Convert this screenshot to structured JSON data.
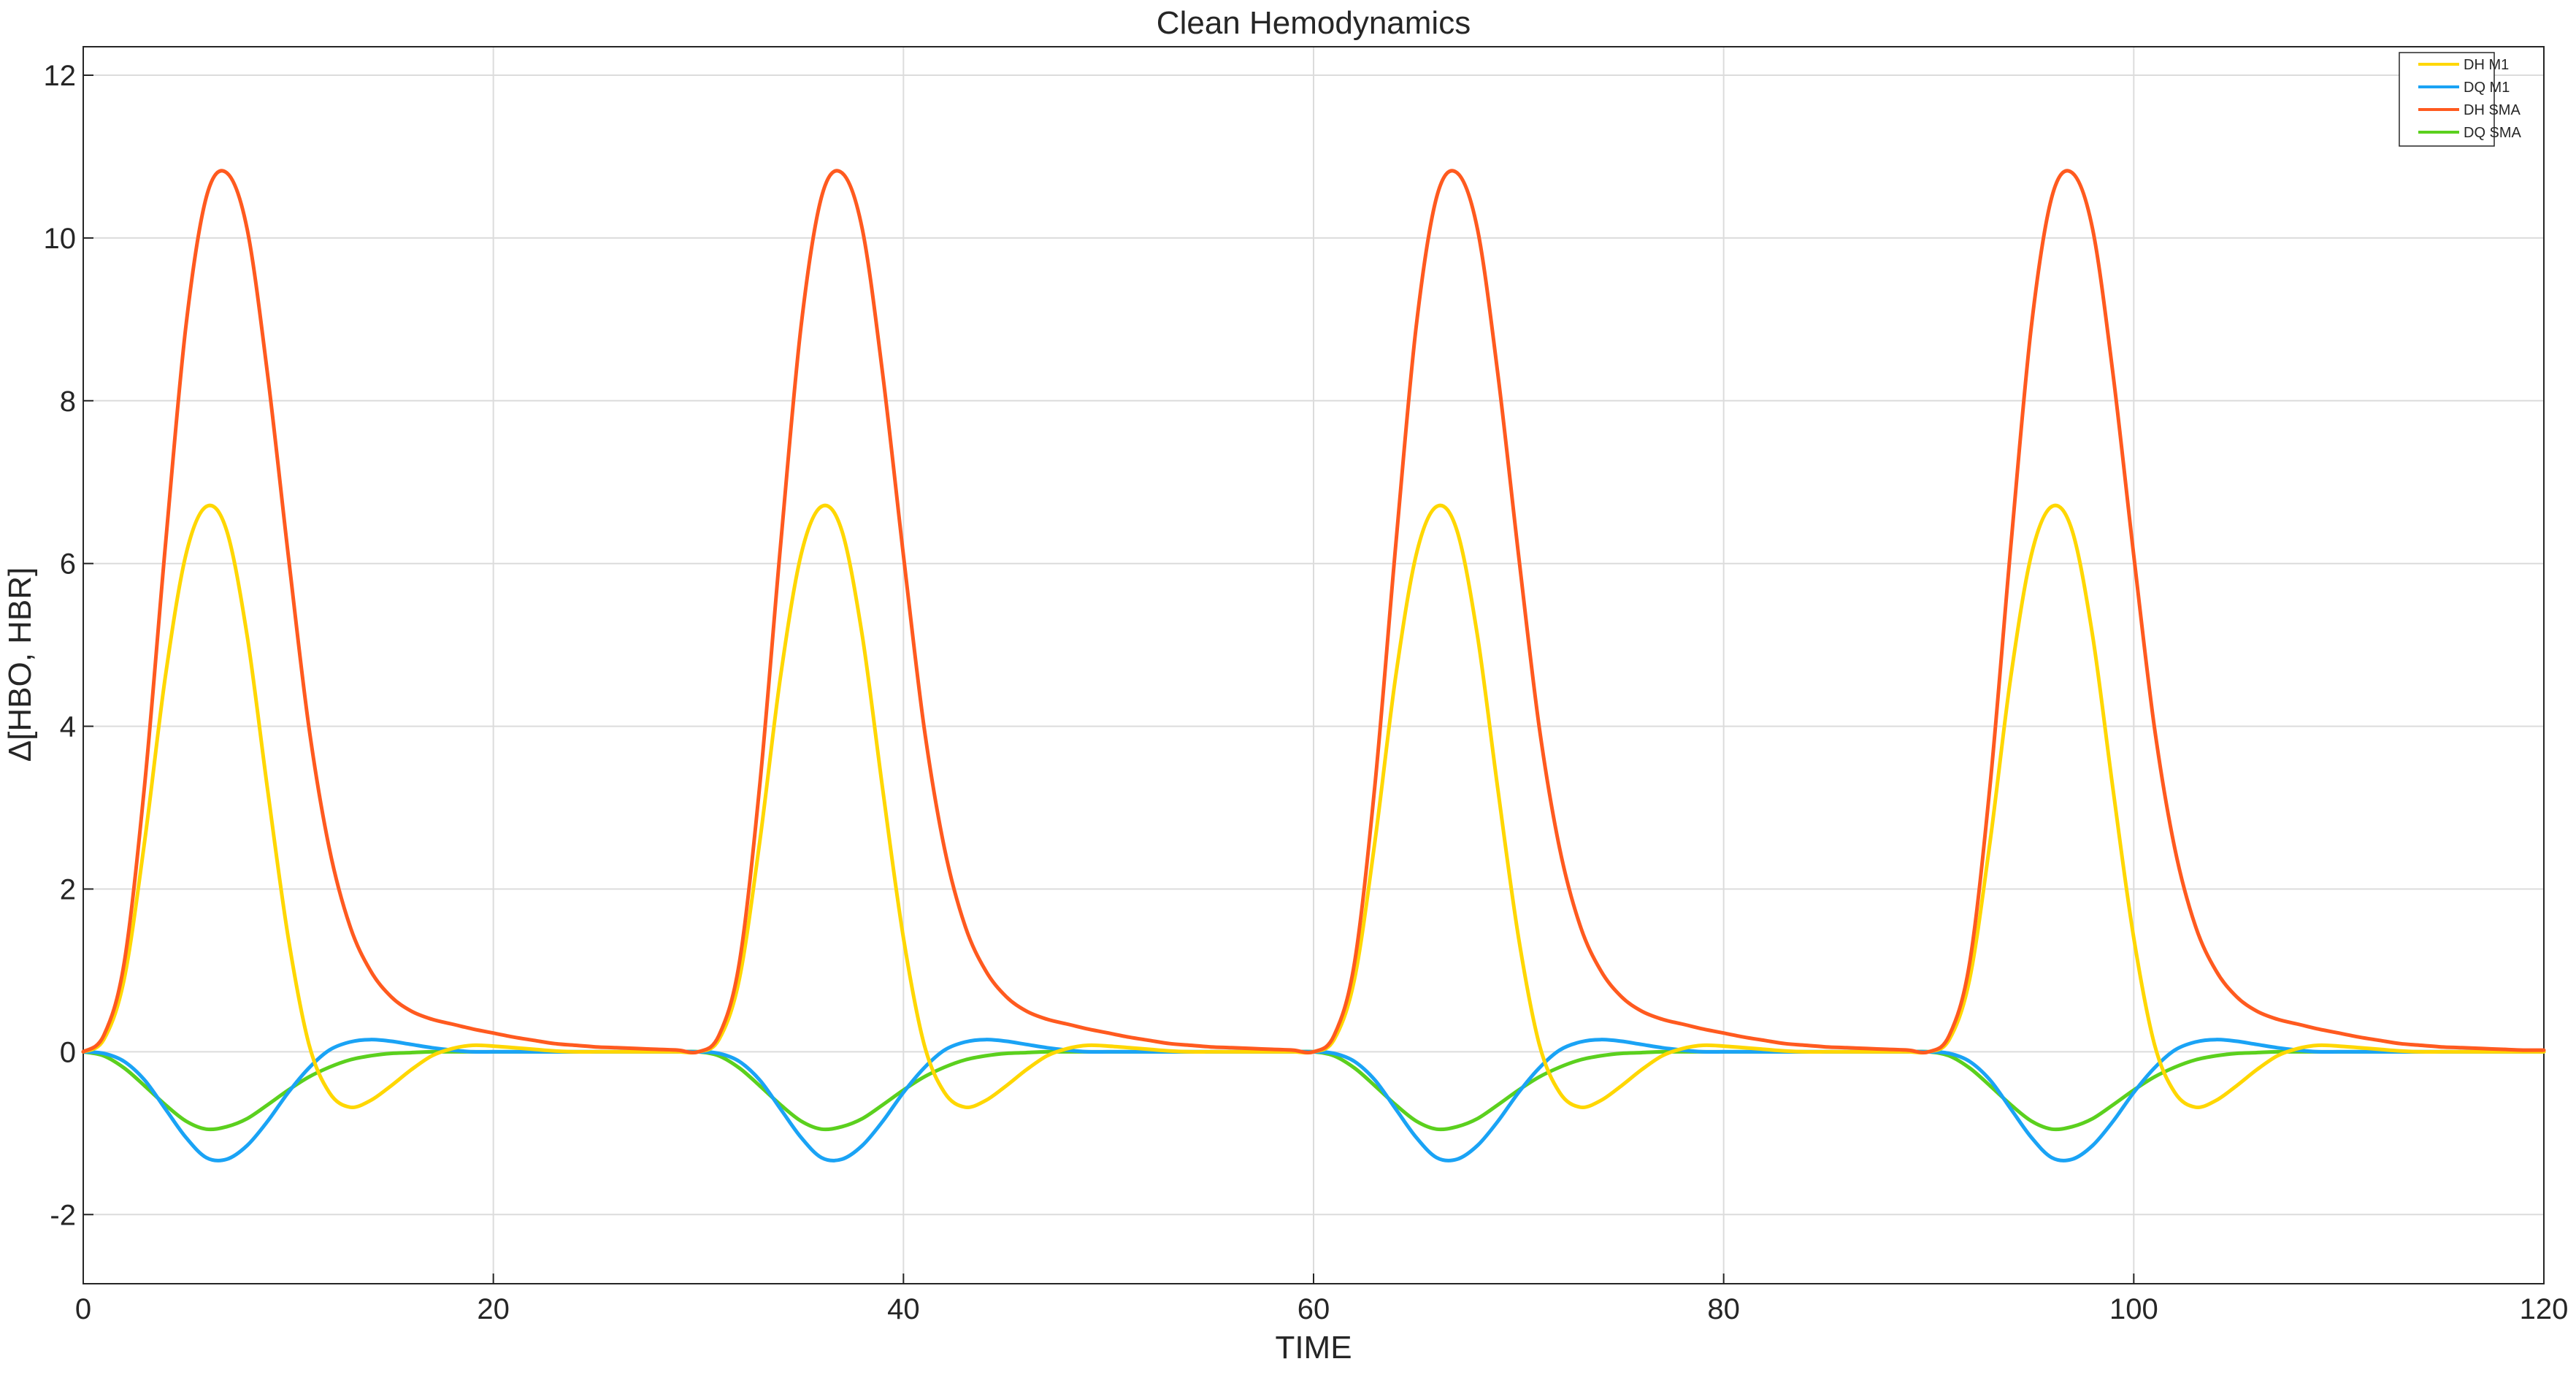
{
  "chart_data": {
    "type": "line",
    "title": "Clean Hemodynamics",
    "xlabel": "TIME",
    "ylabel": "Δ[HBO, HBR]",
    "xlim": [
      0,
      120
    ],
    "ylim": [
      -2.85,
      12.35
    ],
    "xticks": [
      0,
      20,
      40,
      60,
      80,
      100,
      120
    ],
    "yticks": [
      -2,
      0,
      2,
      4,
      6,
      8,
      10,
      12
    ],
    "xtick_labels": [
      "0",
      "20",
      "40",
      "60",
      "80",
      "100",
      "120"
    ],
    "ytick_labels": [
      "-2",
      "0",
      "2",
      "4",
      "6",
      "8",
      "10",
      "12"
    ],
    "grid": true,
    "legend_position": "top-right",
    "period": 30,
    "x": [
      0,
      1,
      2,
      3,
      4,
      5,
      6,
      7,
      8,
      9,
      10,
      11,
      12,
      13,
      14,
      15,
      16,
      17,
      18,
      19,
      20,
      21,
      22,
      23,
      24,
      25,
      26,
      27,
      28,
      29,
      30,
      31,
      32,
      33,
      34,
      35,
      36,
      37,
      38,
      39,
      40,
      41,
      42,
      43,
      44,
      45,
      46,
      47,
      48,
      49,
      50,
      51,
      52,
      53,
      54,
      55,
      56,
      57,
      58,
      59,
      60,
      61,
      62,
      63,
      64,
      65,
      66,
      67,
      68,
      69,
      70,
      71,
      72,
      73,
      74,
      75,
      76,
      77,
      78,
      79,
      80,
      81,
      82,
      83,
      84,
      85,
      86,
      87,
      88,
      89,
      90,
      91,
      92,
      93,
      94,
      95,
      96,
      97,
      98,
      99,
      100,
      101,
      102,
      103,
      104,
      105,
      106,
      107,
      108,
      109,
      110,
      111,
      112,
      113,
      114,
      115,
      116,
      117,
      118,
      119,
      120
    ],
    "series": [
      {
        "name": "DH M1",
        "color": "#FFD700",
        "values": [
          0,
          0.15,
          0.9,
          2.6,
          4.6,
          6.1,
          6.7,
          6.4,
          5.1,
          3.2,
          1.4,
          0.1,
          -0.5,
          -0.68,
          -0.6,
          -0.42,
          -0.22,
          -0.05,
          0.04,
          0.08,
          0.07,
          0.05,
          0.03,
          0.01,
          0,
          0,
          0,
          0,
          0,
          0,
          0,
          0.15,
          0.9,
          2.6,
          4.6,
          6.1,
          6.7,
          6.4,
          5.1,
          3.2,
          1.4,
          0.1,
          -0.5,
          -0.68,
          -0.6,
          -0.42,
          -0.22,
          -0.05,
          0.04,
          0.08,
          0.07,
          0.05,
          0.03,
          0.01,
          0,
          0,
          0,
          0,
          0,
          0,
          0,
          0.15,
          0.9,
          2.6,
          4.6,
          6.1,
          6.7,
          6.4,
          5.1,
          3.2,
          1.4,
          0.1,
          -0.5,
          -0.68,
          -0.6,
          -0.42,
          -0.22,
          -0.05,
          0.04,
          0.08,
          0.07,
          0.05,
          0.03,
          0.01,
          0,
          0,
          0,
          0,
          0,
          0,
          0,
          0.15,
          0.9,
          2.6,
          4.6,
          6.1,
          6.7,
          6.4,
          5.1,
          3.2,
          1.4,
          0.1,
          -0.5,
          -0.68,
          -0.6,
          -0.42,
          -0.22,
          -0.05,
          0.04,
          0.08,
          0.07,
          0.05,
          0.03,
          0.01,
          0,
          0,
          0,
          0,
          0,
          0,
          0
        ]
      },
      {
        "name": "DQ M1",
        "color": "#1AA3F5",
        "values": [
          0,
          -0.02,
          -0.12,
          -0.35,
          -0.7,
          -1.05,
          -1.3,
          -1.32,
          -1.15,
          -0.85,
          -0.5,
          -0.2,
          0.02,
          0.12,
          0.15,
          0.13,
          0.09,
          0.05,
          0.02,
          0,
          0,
          0,
          0,
          0,
          0,
          0,
          0,
          0,
          0,
          0,
          0,
          -0.02,
          -0.12,
          -0.35,
          -0.7,
          -1.05,
          -1.3,
          -1.32,
          -1.15,
          -0.85,
          -0.5,
          -0.2,
          0.02,
          0.12,
          0.15,
          0.13,
          0.09,
          0.05,
          0.02,
          0,
          0,
          0,
          0,
          0,
          0,
          0,
          0,
          0,
          0,
          0,
          0,
          -0.02,
          -0.12,
          -0.35,
          -0.7,
          -1.05,
          -1.3,
          -1.32,
          -1.15,
          -0.85,
          -0.5,
          -0.2,
          0.02,
          0.12,
          0.15,
          0.13,
          0.09,
          0.05,
          0.02,
          0,
          0,
          0,
          0,
          0,
          0,
          0,
          0,
          0,
          0,
          0,
          0,
          -0.02,
          -0.12,
          -0.35,
          -0.7,
          -1.05,
          -1.3,
          -1.32,
          -1.15,
          -0.85,
          -0.5,
          -0.2,
          0.02,
          0.12,
          0.15,
          0.13,
          0.09,
          0.05,
          0.02,
          0,
          0,
          0,
          0,
          0,
          0,
          0,
          0,
          0,
          0,
          0,
          0
        ]
      },
      {
        "name": "DH SMA",
        "color": "#FF5A1F",
        "values": [
          0,
          0.2,
          1.1,
          3.3,
          6.2,
          8.9,
          10.5,
          10.8,
          10.1,
          8.3,
          6.1,
          4.0,
          2.5,
          1.55,
          1.0,
          0.68,
          0.5,
          0.4,
          0.34,
          0.28,
          0.23,
          0.18,
          0.14,
          0.1,
          0.08,
          0.06,
          0.05,
          0.04,
          0.03,
          0.02,
          0,
          0.2,
          1.1,
          3.3,
          6.2,
          8.9,
          10.5,
          10.8,
          10.1,
          8.3,
          6.1,
          4.0,
          2.5,
          1.55,
          1.0,
          0.68,
          0.5,
          0.4,
          0.34,
          0.28,
          0.23,
          0.18,
          0.14,
          0.1,
          0.08,
          0.06,
          0.05,
          0.04,
          0.03,
          0.02,
          0,
          0.2,
          1.1,
          3.3,
          6.2,
          8.9,
          10.5,
          10.8,
          10.1,
          8.3,
          6.1,
          4.0,
          2.5,
          1.55,
          1.0,
          0.68,
          0.5,
          0.4,
          0.34,
          0.28,
          0.23,
          0.18,
          0.14,
          0.1,
          0.08,
          0.06,
          0.05,
          0.04,
          0.03,
          0.02,
          0,
          0.2,
          1.1,
          3.3,
          6.2,
          8.9,
          10.5,
          10.8,
          10.1,
          8.3,
          6.1,
          4.0,
          2.5,
          1.55,
          1.0,
          0.68,
          0.5,
          0.4,
          0.34,
          0.28,
          0.23,
          0.18,
          0.14,
          0.1,
          0.08,
          0.06,
          0.05,
          0.04,
          0.03,
          0.02,
          0.02
        ]
      },
      {
        "name": "DQ SMA",
        "color": "#5BD01E",
        "values": [
          0,
          -0.05,
          -0.2,
          -0.42,
          -0.65,
          -0.85,
          -0.95,
          -0.92,
          -0.82,
          -0.65,
          -0.47,
          -0.31,
          -0.19,
          -0.1,
          -0.05,
          -0.02,
          -0.01,
          0,
          0,
          0,
          0,
          0,
          0,
          0,
          0,
          0,
          0,
          0,
          0,
          0,
          0,
          -0.05,
          -0.2,
          -0.42,
          -0.65,
          -0.85,
          -0.95,
          -0.92,
          -0.82,
          -0.65,
          -0.47,
          -0.31,
          -0.19,
          -0.1,
          -0.05,
          -0.02,
          -0.01,
          0,
          0,
          0,
          0,
          0,
          0,
          0,
          0,
          0,
          0,
          0,
          0,
          0,
          0,
          -0.05,
          -0.2,
          -0.42,
          -0.65,
          -0.85,
          -0.95,
          -0.92,
          -0.82,
          -0.65,
          -0.47,
          -0.31,
          -0.19,
          -0.1,
          -0.05,
          -0.02,
          -0.01,
          0,
          0,
          0,
          0,
          0,
          0,
          0,
          0,
          0,
          0,
          0,
          0,
          0,
          0,
          -0.05,
          -0.2,
          -0.42,
          -0.65,
          -0.85,
          -0.95,
          -0.92,
          -0.82,
          -0.65,
          -0.47,
          -0.31,
          -0.19,
          -0.1,
          -0.05,
          -0.02,
          -0.01,
          0,
          0,
          0,
          0,
          0,
          0,
          0,
          0,
          0,
          0,
          0,
          0,
          0,
          0
        ]
      }
    ]
  }
}
